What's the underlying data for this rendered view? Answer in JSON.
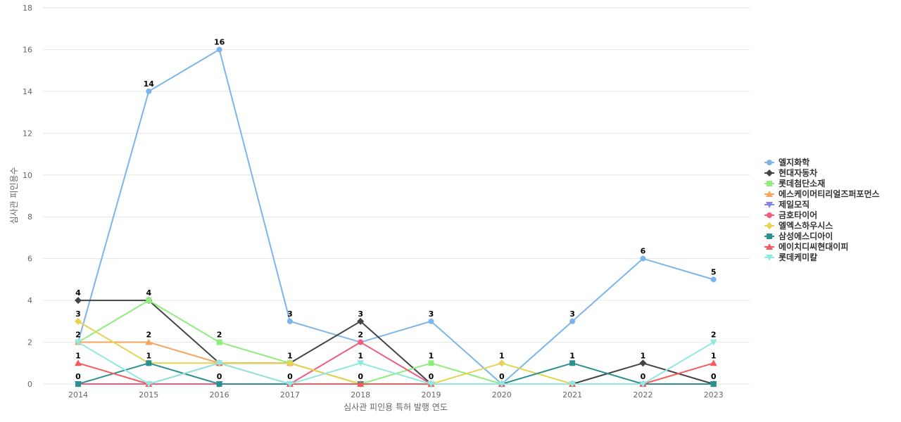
{
  "chart_data": {
    "type": "line",
    "xlabel": "심사관 피인용 특허 발행 연도",
    "ylabel": "심사관 피인용수",
    "ylim": [
      0,
      18
    ],
    "yticks": [
      0,
      2,
      4,
      6,
      8,
      10,
      12,
      14,
      16,
      18
    ],
    "categories": [
      "2014",
      "2015",
      "2016",
      "2017",
      "2018",
      "2019",
      "2020",
      "2021",
      "2022",
      "2023"
    ],
    "legend_position": "right",
    "grid": true,
    "series": [
      {
        "name": "엘지화학",
        "color": "#7cb5ec",
        "marker": "circle",
        "values": [
          2,
          14,
          16,
          3,
          2,
          3,
          0,
          3,
          6,
          5
        ],
        "labels": [
          false,
          true,
          true,
          true,
          false,
          true,
          false,
          true,
          true,
          true
        ]
      },
      {
        "name": "현대자동차",
        "color": "#434348",
        "marker": "diamond",
        "values": [
          4,
          4,
          1,
          1,
          3,
          0,
          0,
          0,
          1,
          0
        ],
        "labels": [
          true,
          false,
          false,
          false,
          true,
          false,
          false,
          false,
          true,
          false
        ]
      },
      {
        "name": "롯데첨단소재",
        "color": "#90ed7d",
        "marker": "square",
        "values": [
          2,
          4,
          2,
          1,
          0,
          1,
          0,
          0,
          0,
          0
        ],
        "labels": [
          false,
          true,
          true,
          true,
          false,
          true,
          false,
          false,
          false,
          false
        ]
      },
      {
        "name": "에스케이머티리얼즈퍼포먼스",
        "color": "#f7a35c",
        "marker": "triangle",
        "values": [
          2,
          2,
          1,
          1,
          0,
          0,
          0,
          0,
          0,
          0
        ],
        "labels": [
          true,
          true,
          false,
          false,
          false,
          false,
          false,
          false,
          false,
          false
        ]
      },
      {
        "name": "제일모직",
        "color": "#8085e9",
        "marker": "triangle-down",
        "values": [
          0,
          0,
          0,
          0,
          0,
          0,
          0,
          0,
          0,
          0
        ],
        "labels": [
          false,
          false,
          false,
          false,
          false,
          false,
          false,
          false,
          false,
          false
        ]
      },
      {
        "name": "금호타이어",
        "color": "#f15c80",
        "marker": "circle",
        "values": [
          0,
          0,
          0,
          0,
          2,
          0,
          0,
          0,
          0,
          0
        ],
        "labels": [
          false,
          false,
          false,
          true,
          true,
          true,
          false,
          false,
          false,
          false
        ]
      },
      {
        "name": "엘엑스하우시스",
        "color": "#e4d354",
        "marker": "diamond",
        "values": [
          3,
          1,
          1,
          1,
          0,
          0,
          1,
          0,
          0,
          0
        ],
        "labels": [
          true,
          false,
          false,
          false,
          false,
          false,
          true,
          false,
          false,
          false
        ]
      },
      {
        "name": "삼성에스디아이",
        "color": "#2b908f",
        "marker": "square",
        "values": [
          0,
          1,
          0,
          0,
          0,
          0,
          0,
          1,
          0,
          0
        ],
        "labels": [
          true,
          true,
          true,
          false,
          true,
          false,
          true,
          true,
          true,
          true
        ]
      },
      {
        "name": "에이치디씨현대이피",
        "color": "#f45b5b",
        "marker": "triangle",
        "values": [
          1,
          0,
          1,
          0,
          0,
          0,
          0,
          0,
          0,
          1
        ],
        "labels": [
          true,
          false,
          false,
          false,
          false,
          false,
          false,
          false,
          false,
          true
        ]
      },
      {
        "name": "롯데케미칼",
        "color": "#91e8e1",
        "marker": "triangle-down",
        "values": [
          2,
          0,
          1,
          0,
          1,
          0,
          0,
          0,
          0,
          2
        ],
        "labels": [
          false,
          false,
          false,
          false,
          true,
          false,
          false,
          false,
          false,
          true
        ]
      }
    ]
  }
}
